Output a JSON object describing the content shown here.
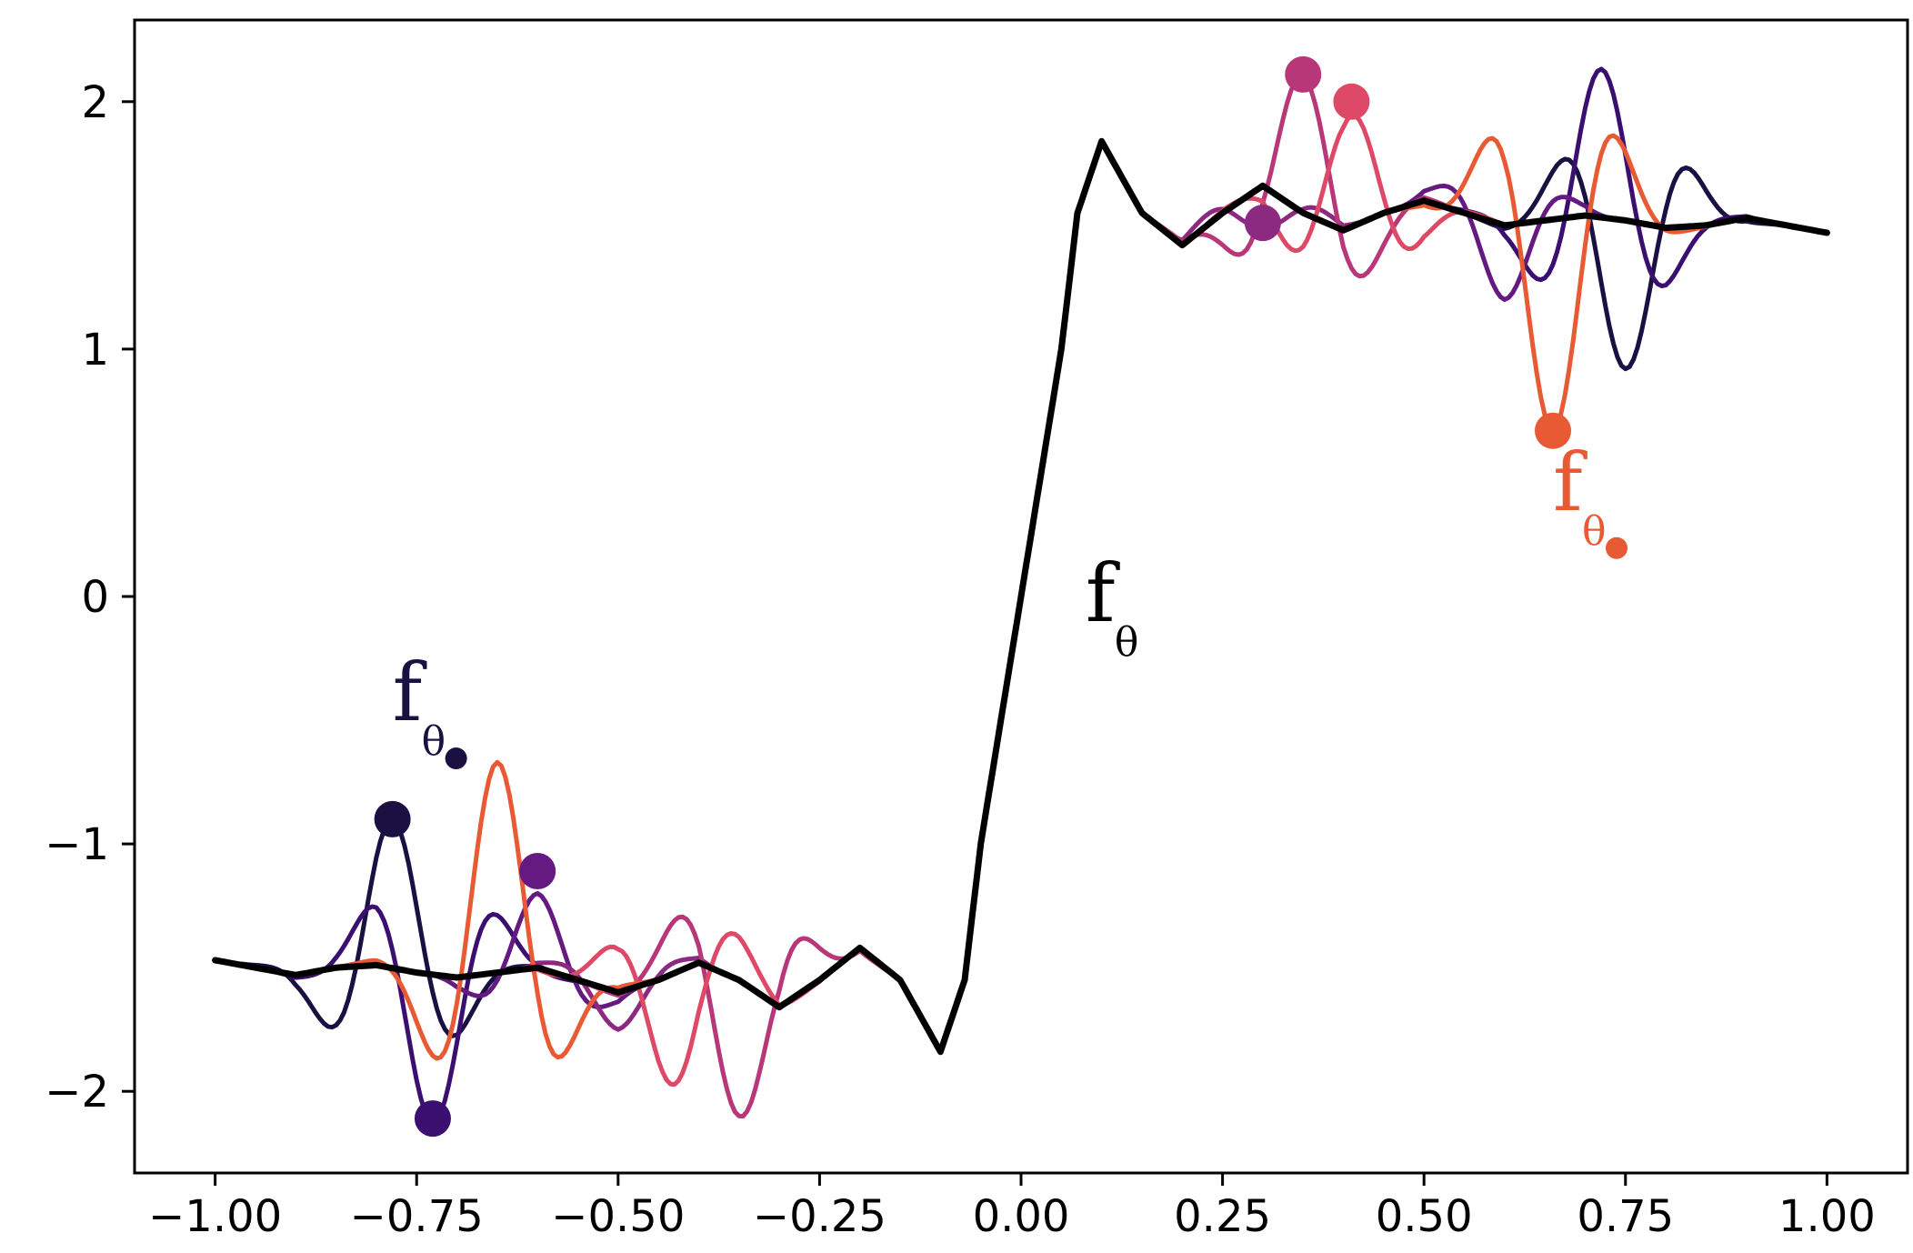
{
  "chart_data": {
    "type": "line",
    "title": "",
    "xlabel": "",
    "ylabel": "",
    "xlim": [
      -1.1,
      1.1
    ],
    "ylim": [
      -2.33,
      2.33
    ],
    "grid": false,
    "xticks": [
      -1.0,
      -0.75,
      -0.5,
      -0.25,
      0.0,
      0.25,
      0.5,
      0.75,
      1.0
    ],
    "xtick_labels": [
      "−1.00",
      "−0.75",
      "−0.50",
      "−0.25",
      "0.00",
      "0.25",
      "0.50",
      "0.75",
      "1.00"
    ],
    "yticks": [
      2,
      1,
      0,
      -1,
      -2
    ],
    "ytick_labels": [
      "2",
      "1",
      "0",
      "−1",
      "−2"
    ],
    "base_curve": {
      "name": "fθ",
      "color": "#000000",
      "description": "smoothed step with Gibbs ringing, about −1.5 for x<0 and 1.5 for x>0",
      "x": [
        -1.0,
        -0.95,
        -0.9,
        -0.85,
        -0.8,
        -0.75,
        -0.7,
        -0.65,
        -0.6,
        -0.55,
        -0.5,
        -0.45,
        -0.4,
        -0.35,
        -0.3,
        -0.25,
        -0.2,
        -0.15,
        -0.1,
        -0.07,
        -0.05,
        -0.03,
        0.0,
        0.03,
        0.05,
        0.07,
        0.1,
        0.15,
        0.2,
        0.25,
        0.3,
        0.35,
        0.4,
        0.45,
        0.5,
        0.55,
        0.6,
        0.65,
        0.7,
        0.75,
        0.8,
        0.85,
        0.9,
        0.95,
        1.0
      ],
      "y": [
        -1.47,
        -1.5,
        -1.53,
        -1.5,
        -1.49,
        -1.52,
        -1.54,
        -1.52,
        -1.5,
        -1.55,
        -1.6,
        -1.55,
        -1.48,
        -1.55,
        -1.66,
        -1.55,
        -1.42,
        -1.55,
        -1.84,
        -1.55,
        -1.0,
        -0.6,
        0.0,
        0.6,
        1.0,
        1.55,
        1.84,
        1.55,
        1.42,
        1.55,
        1.66,
        1.55,
        1.48,
        1.55,
        1.6,
        1.55,
        1.5,
        1.52,
        1.54,
        1.52,
        1.49,
        1.5,
        1.53,
        1.5,
        1.47
      ]
    },
    "perturbations": [
      {
        "color": "#1a1042",
        "amp": 0.6,
        "width": 0.06,
        "centers": [
          -0.78,
          0.75
        ],
        "signs": [
          1,
          -1
        ]
      },
      {
        "color": "#3b0f70",
        "amp": 0.6,
        "width": 0.06,
        "centers": [
          -0.73,
          0.72
        ],
        "signs": [
          -1,
          1
        ]
      },
      {
        "color": "#641a80",
        "amp": 0.3,
        "width": 0.05,
        "centers": [
          -0.6,
          0.6
        ],
        "signs": [
          1,
          -1
        ]
      },
      {
        "color": "#8c2981",
        "amp": 0.15,
        "width": 0.05,
        "centers": [
          -0.5,
          0.3
        ],
        "signs": [
          -1,
          -1
        ]
      },
      {
        "color": "#b73779",
        "amp": 0.55,
        "width": 0.06,
        "centers": [
          -0.35,
          0.35
        ],
        "signs": [
          -1,
          1
        ]
      },
      {
        "color": "#de4968",
        "amp": 0.45,
        "width": 0.06,
        "centers": [
          -0.43,
          0.41
        ],
        "signs": [
          -1,
          1
        ]
      },
      {
        "color": "#e85a33",
        "amp": 0.85,
        "width": 0.06,
        "centers": [
          -0.65,
          0.66
        ],
        "signs": [
          1,
          -1
        ]
      }
    ],
    "markers": [
      {
        "x": -0.78,
        "y": -0.9,
        "color": "#1a1042"
      },
      {
        "x": -0.73,
        "y": -2.11,
        "color": "#3b0f70"
      },
      {
        "x": -0.6,
        "y": -1.11,
        "color": "#641a80"
      },
      {
        "x": 0.3,
        "y": 1.51,
        "color": "#8c2981"
      },
      {
        "x": 0.35,
        "y": 2.11,
        "color": "#b73779"
      },
      {
        "x": 0.41,
        "y": 2.0,
        "color": "#de4968"
      },
      {
        "x": 0.66,
        "y": 0.67,
        "color": "#e85a33"
      }
    ],
    "annotations": [
      {
        "text": "f",
        "sub": "θ",
        "x": 0.08,
        "y": -0.1,
        "color": "#000000",
        "dot": false
      },
      {
        "text": "f",
        "sub": "θ",
        "x": -0.78,
        "y": -0.5,
        "color": "#1a1042",
        "dot": true
      },
      {
        "text": "f",
        "sub": "θ",
        "x": 0.66,
        "y": 0.35,
        "color": "#e85a33",
        "dot": true
      }
    ]
  }
}
